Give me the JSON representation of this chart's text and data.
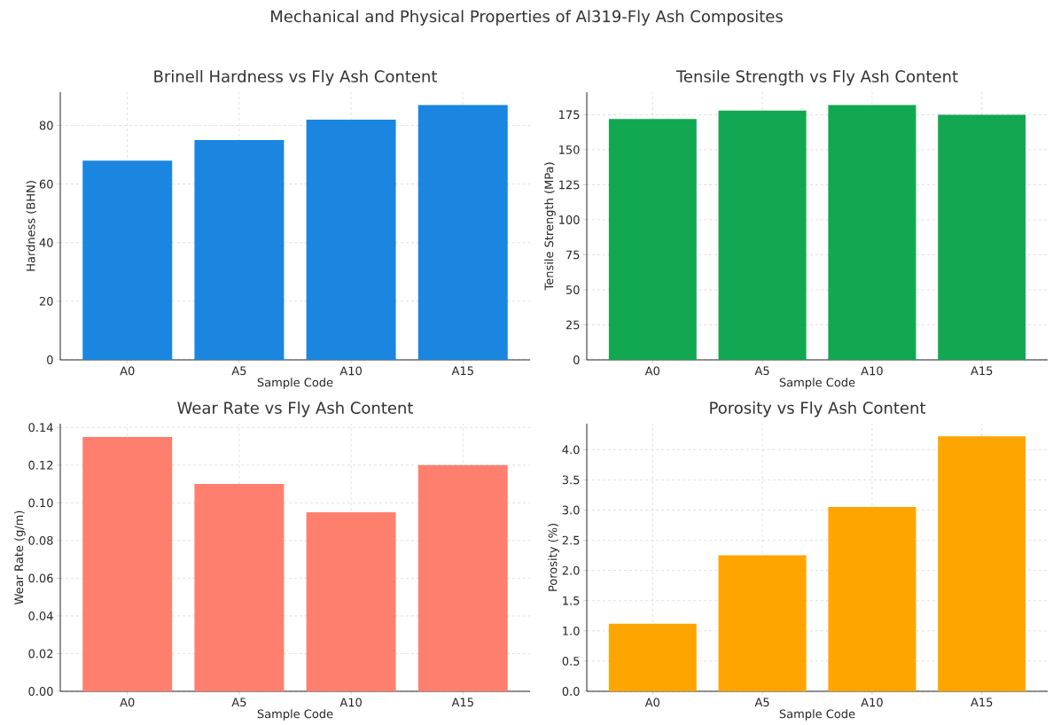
{
  "chart_data": [
    {
      "type": "bar",
      "title": "Brinell Hardness vs Fly Ash Content",
      "xlabel": "Sample Code",
      "ylabel": "Hardness (BHN)",
      "annotations": [
        "Mechanical and Physical Properties of Al319-Fly Ash Composites"
      ],
      "categories": [
        "A0",
        "A5",
        "A10",
        "A15"
      ],
      "values": [
        68,
        75,
        82,
        87
      ],
      "color": "#1a86e0",
      "ylim": [
        0,
        91.35
      ],
      "yticks": [
        0,
        20,
        40,
        60,
        80
      ],
      "grid": true
    },
    {
      "type": "bar",
      "title": "Tensile Strength vs Fly Ash Content",
      "xlabel": "Sample Code",
      "ylabel": "Tensile Strength (MPa)",
      "categories": [
        "A0",
        "A5",
        "A10",
        "A15"
      ],
      "values": [
        172,
        178,
        182,
        175
      ],
      "color": "#12a851",
      "ylim": [
        0,
        191.1
      ],
      "yticks": [
        0,
        25,
        50,
        75,
        100,
        125,
        150,
        175
      ],
      "grid": true
    },
    {
      "type": "bar",
      "title": "Wear Rate vs Fly Ash Content",
      "xlabel": "Sample Code",
      "ylabel": "Wear Rate (g/m)",
      "categories": [
        "A0",
        "A5",
        "A10",
        "A15"
      ],
      "values": [
        0.135,
        0.11,
        0.095,
        0.12
      ],
      "color": "#ff7f6e",
      "ylim": [
        0,
        0.142
      ],
      "yticks": [
        {
          "value": 0,
          "label": "0.00"
        },
        {
          "value": 0.02,
          "label": "0.02"
        },
        {
          "value": 0.04,
          "label": "0.04"
        },
        {
          "value": 0.06,
          "label": "0.06"
        },
        {
          "value": 0.08,
          "label": "0.08"
        },
        {
          "value": 0.1,
          "label": "0.10"
        },
        {
          "value": 0.12,
          "label": "0.12"
        },
        {
          "value": 0.14,
          "label": "0.14"
        }
      ],
      "grid": true
    },
    {
      "type": "bar",
      "title": "Porosity vs Fly Ash Content",
      "xlabel": "Sample Code",
      "ylabel": "Porosity (%)",
      "categories": [
        "A0",
        "A5",
        "A10",
        "A15"
      ],
      "values": [
        1.12,
        2.25,
        3.05,
        4.22
      ],
      "color": "#ffa500",
      "ylim": [
        0,
        4.43
      ],
      "yticks": [
        {
          "value": 0,
          "label": "0.0"
        },
        0.5,
        {
          "value": 1,
          "label": "1.0"
        },
        1.5,
        {
          "value": 2,
          "label": "2.0"
        },
        2.5,
        {
          "value": 3,
          "label": "3.0"
        },
        3.5,
        {
          "value": 4,
          "label": "4.0"
        }
      ],
      "grid": true
    }
  ]
}
